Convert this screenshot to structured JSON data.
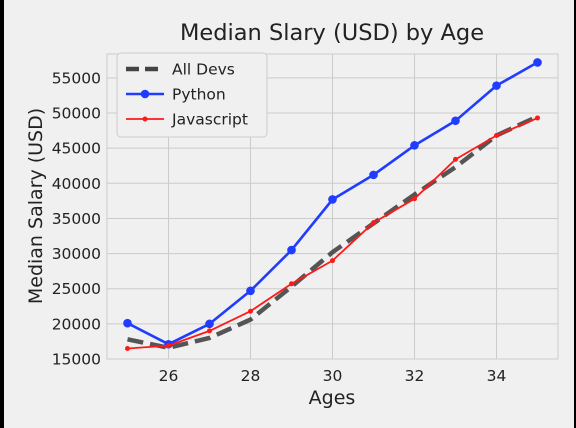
{
  "chart_data": {
    "type": "line",
    "title": "Median Slary (USD) by Age",
    "xlabel": "Ages",
    "ylabel": "Median Salary (USD)",
    "x": [
      25,
      26,
      27,
      28,
      29,
      30,
      31,
      32,
      33,
      34,
      35
    ],
    "xlim": [
      24.5,
      35.5
    ],
    "ylim": [
      15000,
      58400
    ],
    "xticks": [
      "26",
      "28",
      "30",
      "32",
      "34"
    ],
    "yticks": [
      "15000",
      "20000",
      "25000",
      "30000",
      "35000",
      "40000",
      "45000",
      "50000",
      "55000"
    ],
    "grid": true,
    "legend_position": "upper-left",
    "series": [
      {
        "name": "All Devs",
        "color": "#444444",
        "style": "dashed",
        "values": [
          17800,
          16600,
          18000,
          20600,
          25300,
          30200,
          34300,
          38400,
          42300,
          46800,
          49500
        ]
      },
      {
        "name": "Python",
        "color": "#1f3cff",
        "style": "solid-marker",
        "values": [
          20100,
          17100,
          20000,
          24700,
          30500,
          37700,
          41200,
          45400,
          48900,
          53900,
          57200
        ]
      },
      {
        "name": "Javascript",
        "color": "#ff1a1a",
        "style": "solid-small-marker",
        "values": [
          16500,
          16900,
          19000,
          21800,
          25700,
          29000,
          34400,
          37800,
          43400,
          46800,
          49300
        ]
      }
    ]
  }
}
